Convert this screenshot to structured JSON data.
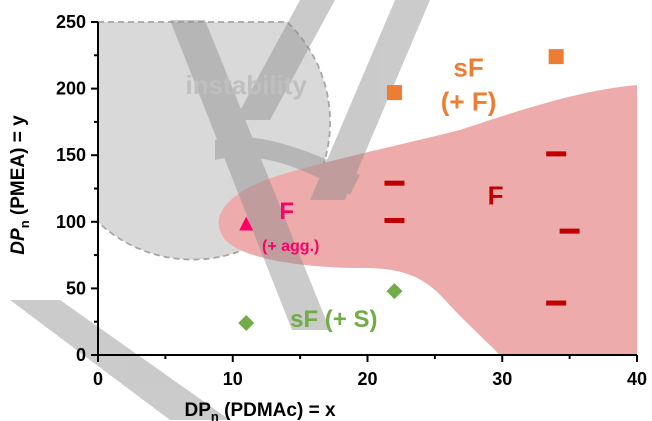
{
  "chart_data": {
    "type": "scatter",
    "xlabel": {
      "base": "DP",
      "sub": "n",
      "rest": " (PDMAc) = x"
    },
    "ylabel": {
      "base": "DP",
      "sub": "n",
      "rest": " (PMEA) = y"
    },
    "xlim": [
      0,
      40
    ],
    "ylim": [
      0,
      250
    ],
    "xticks": [
      0,
      10,
      20,
      30,
      40
    ],
    "yticks": [
      0,
      50,
      100,
      150,
      200,
      250
    ],
    "grid": false,
    "legend": "none",
    "colors": {
      "sF_plus_F": "#ed7d31",
      "F": "#c00000",
      "F_agg": "#ff0066",
      "sF_plus_S": "#70ad47",
      "F_region": "#eeabab",
      "instability": "#d9d9d9",
      "instability_border": "#a6a6a6",
      "watermark": "#b0b0b0"
    },
    "series": [
      {
        "marker": "square",
        "color_key": "sF_plus_F",
        "points": [
          {
            "x": 22,
            "y": 197
          },
          {
            "x": 34,
            "y": 224
          }
        ]
      },
      {
        "marker": "dash",
        "color_key": "F",
        "points": [
          {
            "x": 22,
            "y": 129
          },
          {
            "x": 22,
            "y": 101
          },
          {
            "x": 34,
            "y": 151
          },
          {
            "x": 35,
            "y": 93
          },
          {
            "x": 34,
            "y": 39
          }
        ]
      },
      {
        "marker": "triangle",
        "color_key": "F_agg",
        "points": [
          {
            "x": 11,
            "y": 98
          }
        ]
      },
      {
        "marker": "diamond",
        "color_key": "sF_plus_S",
        "points": [
          {
            "x": 11,
            "y": 24
          },
          {
            "x": 22,
            "y": 48
          }
        ]
      }
    ],
    "regions": [
      {
        "label": "instability",
        "color_key": "instability"
      },
      {
        "label": "F",
        "color_key": "F_region"
      }
    ],
    "annotations": [
      {
        "lines": [
          "instability"
        ],
        "x": 11,
        "y": 196,
        "color": "#bfbfbf",
        "size": 26
      },
      {
        "lines": [
          "sF",
          "(+ F)"
        ],
        "x": 27.5,
        "y": 209,
        "color": "#ed7d31",
        "size": 26
      },
      {
        "lines": [
          "F"
        ],
        "x": 29.5,
        "y": 113,
        "color": "#c00000",
        "size": 26
      },
      {
        "lines": [
          "F"
        ],
        "x": 14,
        "y": 102,
        "color": "#ff0066",
        "size": 24
      },
      {
        "lines": [
          "(+ agg.)"
        ],
        "x": 14.3,
        "y": 78,
        "color": "#ff0066",
        "size": 16
      },
      {
        "lines": [
          "sF (+ S)"
        ],
        "x": 17.5,
        "y": 21,
        "color": "#70ad47",
        "size": 24
      }
    ]
  }
}
